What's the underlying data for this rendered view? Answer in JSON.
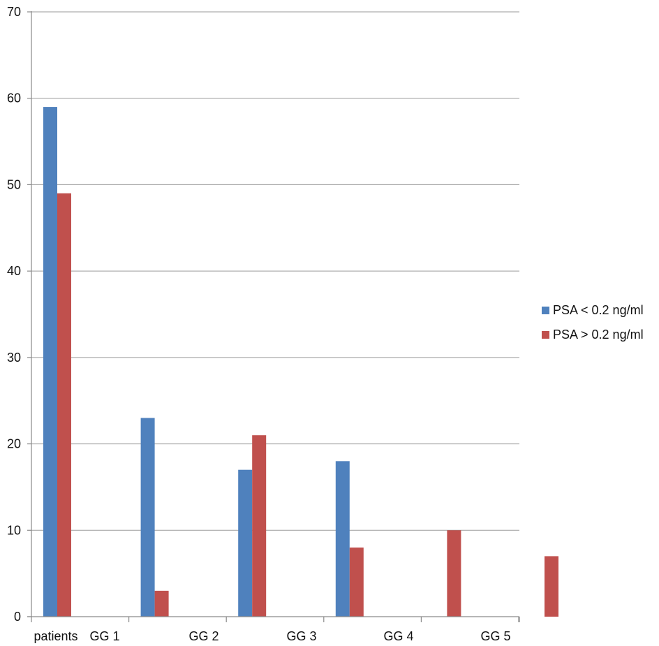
{
  "chart_data": {
    "type": "bar",
    "title": "",
    "xlabel": "",
    "ylabel": "",
    "ylim": [
      0,
      70
    ],
    "yticks": [
      0,
      10,
      20,
      30,
      40,
      50,
      60,
      70
    ],
    "categories": [
      "patients",
      "GG 1",
      "GG 2",
      "GG 3",
      "GG 4",
      "GG 5"
    ],
    "series": [
      {
        "name": "PSA < 0.2 ng/ml",
        "color": "#4f81bd",
        "values": [
          59,
          23,
          17,
          18,
          0,
          0
        ]
      },
      {
        "name": "PSA > 0.2 ng/ml",
        "color": "#c0504d",
        "values": [
          49,
          3,
          21,
          8,
          10,
          7
        ]
      }
    ],
    "grid": true,
    "legend_position": "right"
  }
}
